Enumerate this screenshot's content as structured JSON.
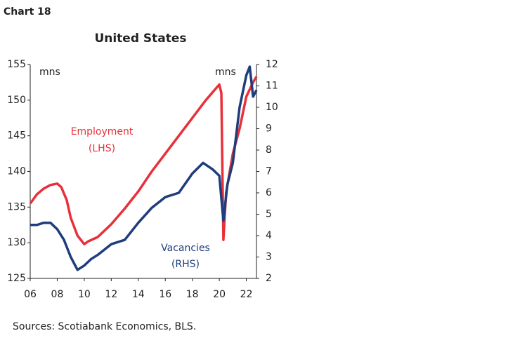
{
  "chart_data": {
    "type": "line",
    "label": "Chart 18",
    "title": "United States",
    "source": "Sources: Scotiabank Economics, BLS.",
    "y_unit": "mns",
    "y2_unit": "mns",
    "annotations": [
      "Employment",
      "(LHS)",
      "Vacancies",
      "(RHS)"
    ],
    "xlim": [
      2006,
      2022.75
    ],
    "xticks": [
      {
        "value": 2006,
        "label": "06"
      },
      {
        "value": 2008,
        "label": "08"
      },
      {
        "value": 2010,
        "label": "10"
      },
      {
        "value": 2012,
        "label": "12"
      },
      {
        "value": 2014,
        "label": "14"
      },
      {
        "value": 2016,
        "label": "16"
      },
      {
        "value": 2018,
        "label": "18"
      },
      {
        "value": 2020,
        "label": "20"
      },
      {
        "value": 2022,
        "label": "22"
      }
    ],
    "ylim": [
      125,
      155
    ],
    "yticks": [
      125,
      130,
      135,
      140,
      145,
      150,
      155
    ],
    "y2lim": [
      2,
      12
    ],
    "y2ticks": [
      2,
      3,
      4,
      5,
      6,
      7,
      8,
      9,
      10,
      11,
      12
    ],
    "grid": false,
    "series": [
      {
        "name": "Employment",
        "color": "#e8303a",
        "axis": "y",
        "x": [
          2006,
          2006.5,
          2007,
          2007.5,
          2008,
          2008.3,
          2008.7,
          2009,
          2009.5,
          2010,
          2010.3,
          2011,
          2012,
          2013,
          2014,
          2015,
          2016,
          2017,
          2018,
          2019,
          2020,
          2020.15,
          2020.3,
          2020.5,
          2021,
          2021.5,
          2022,
          2022.5,
          2022.75
        ],
        "values": [
          135.5,
          136.8,
          137.6,
          138.1,
          138.3,
          137.8,
          136,
          133.5,
          131,
          129.8,
          130.2,
          130.8,
          132.6,
          134.8,
          137.2,
          140,
          142.5,
          145,
          147.5,
          150,
          152.2,
          151,
          130.4,
          137,
          142.5,
          146,
          150.5,
          152.5,
          153.3
        ]
      },
      {
        "name": "Vacancies",
        "color": "#1f3d7a",
        "axis": "y2",
        "x": [
          2006,
          2006.5,
          2007,
          2007.5,
          2008,
          2008.5,
          2009,
          2009.5,
          2010,
          2010.5,
          2011,
          2012,
          2013,
          2014,
          2015,
          2016,
          2017,
          2018,
          2018.8,
          2019.5,
          2020,
          2020.3,
          2020.6,
          2021,
          2021.5,
          2022,
          2022.25,
          2022.5,
          2022.75
        ],
        "values": [
          4.5,
          4.5,
          4.6,
          4.6,
          4.3,
          3.8,
          3,
          2.4,
          2.6,
          2.9,
          3.1,
          3.6,
          3.8,
          4.6,
          5.3,
          5.8,
          6,
          6.9,
          7.4,
          7.1,
          6.8,
          4.7,
          6.4,
          7.4,
          10,
          11.5,
          11.9,
          10.5,
          10.8
        ]
      }
    ]
  }
}
